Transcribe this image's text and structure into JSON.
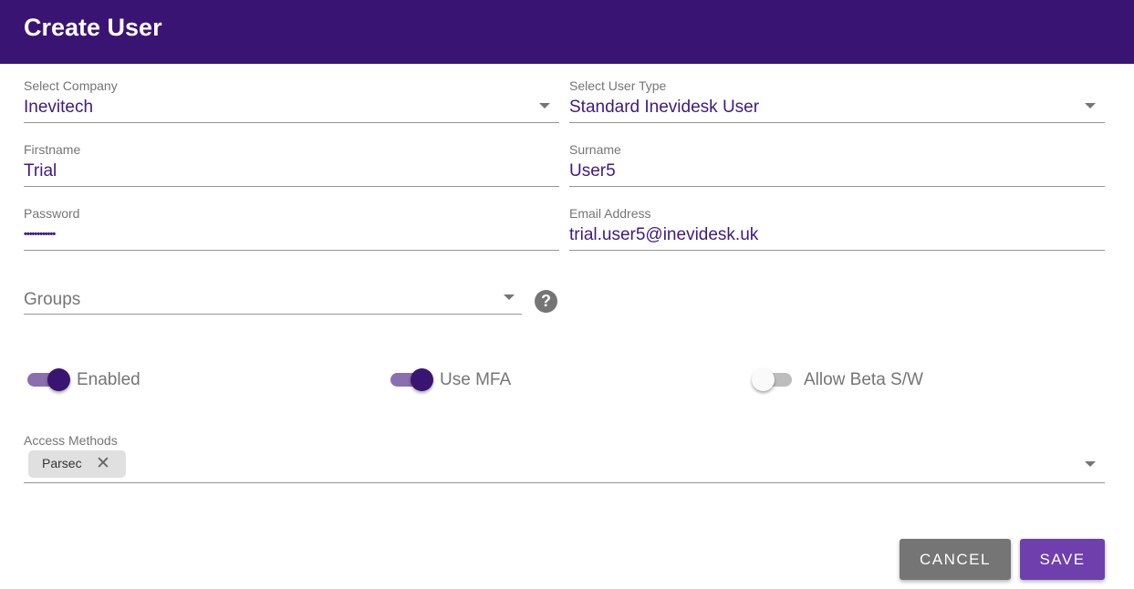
{
  "header": {
    "title": "Create User"
  },
  "fields": {
    "company": {
      "label": "Select Company",
      "value": "Inevitech"
    },
    "user_type": {
      "label": "Select User Type",
      "value": "Standard Inevidesk User"
    },
    "firstname": {
      "label": "Firstname",
      "value": "Trial"
    },
    "surname": {
      "label": "Surname",
      "value": "User5"
    },
    "password": {
      "label": "Password",
      "value": "••••••••••••"
    },
    "email": {
      "label": "Email Address",
      "value": "trial.user5@inevidesk.uk"
    },
    "groups": {
      "placeholder": "Groups"
    }
  },
  "toggles": [
    {
      "label": "Enabled",
      "on": true
    },
    {
      "label": "Use MFA",
      "on": true
    },
    {
      "label": "Allow Beta S/W",
      "on": false
    }
  ],
  "access_methods": {
    "label": "Access Methods",
    "chips": [
      "Parsec"
    ]
  },
  "buttons": {
    "cancel": "CANCEL",
    "save": "SAVE"
  },
  "colors": {
    "header": "#3a1472",
    "accent": "#3a1472",
    "save": "#6f3fae",
    "cancel": "#757575"
  }
}
